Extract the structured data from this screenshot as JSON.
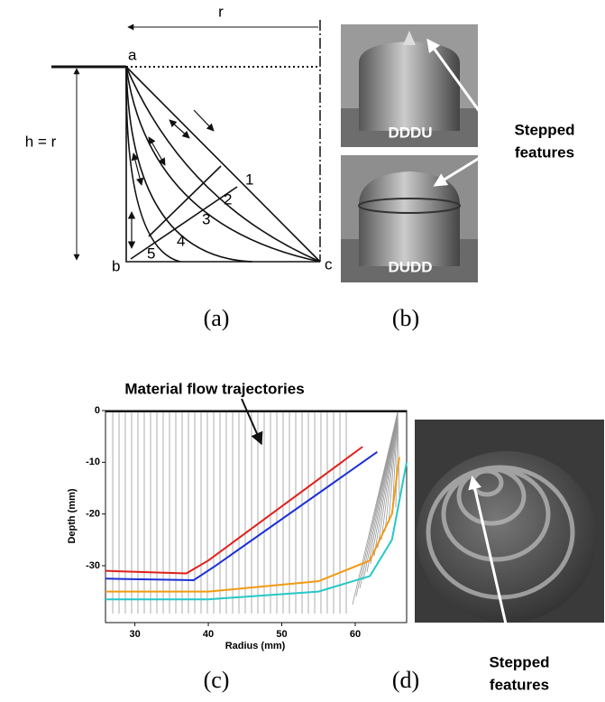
{
  "panel_a": {
    "r_label": "r",
    "height_label": "h = r",
    "points": [
      "a",
      "b",
      "c"
    ],
    "curve_labels": [
      "1",
      "2",
      "3",
      "4",
      "5"
    ]
  },
  "panel_b": {
    "photo_labels": [
      "DDDU",
      "DUDD"
    ],
    "annotation": [
      "Stepped",
      "features"
    ]
  },
  "panel_d": {
    "annotation": [
      "Stepped",
      "features"
    ]
  },
  "captions": [
    "(a)",
    "(b)",
    "(c)",
    "(d)"
  ],
  "chart_data": {
    "type": "line",
    "annotation": "Material flow trajectories",
    "x_label": "Radius (mm)",
    "y_label": "Depth (mm)",
    "xlim": [
      26,
      67
    ],
    "ylim": [
      -41,
      0
    ],
    "xticks": [
      30,
      40,
      50,
      60
    ],
    "yticks": [
      0,
      -10,
      -20,
      -30
    ],
    "series": [
      {
        "color": "#e0201b",
        "x": [
          26,
          37,
          40,
          61
        ],
        "values": [
          -31,
          -31.5,
          -29,
          -7
        ]
      },
      {
        "color": "#1c2fd6",
        "x": [
          26,
          38,
          41,
          63
        ],
        "values": [
          -32.5,
          -32.8,
          -30,
          -8
        ]
      },
      {
        "color": "#f29a12",
        "x": [
          26,
          40,
          55,
          62,
          65,
          66
        ],
        "values": [
          -35,
          -35,
          -33,
          -29,
          -20,
          -9
        ]
      },
      {
        "color": "#25c8c8",
        "x": [
          26,
          40,
          55,
          62,
          65,
          67
        ],
        "values": [
          -36.5,
          -36.5,
          -35,
          -32,
          -25,
          -10
        ]
      }
    ]
  }
}
